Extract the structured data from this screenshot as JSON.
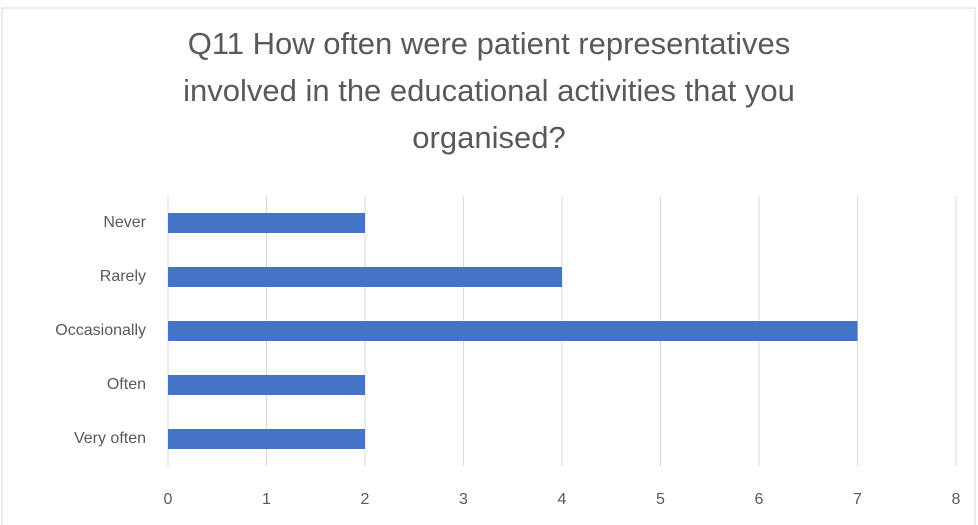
{
  "chart_data": {
    "type": "bar",
    "orientation": "horizontal",
    "title": "Q11 How often were patient representatives involved in the educational activities that you organised?",
    "categories": [
      "Never",
      "Rarely",
      "Occasionally",
      "Often",
      "Very often"
    ],
    "values": [
      2,
      4,
      7,
      2,
      2
    ],
    "color": "#4472c4",
    "xlim": [
      0,
      8
    ],
    "xticks": [
      0,
      1,
      2,
      3,
      4,
      5,
      6,
      7,
      8
    ],
    "grid": true
  }
}
